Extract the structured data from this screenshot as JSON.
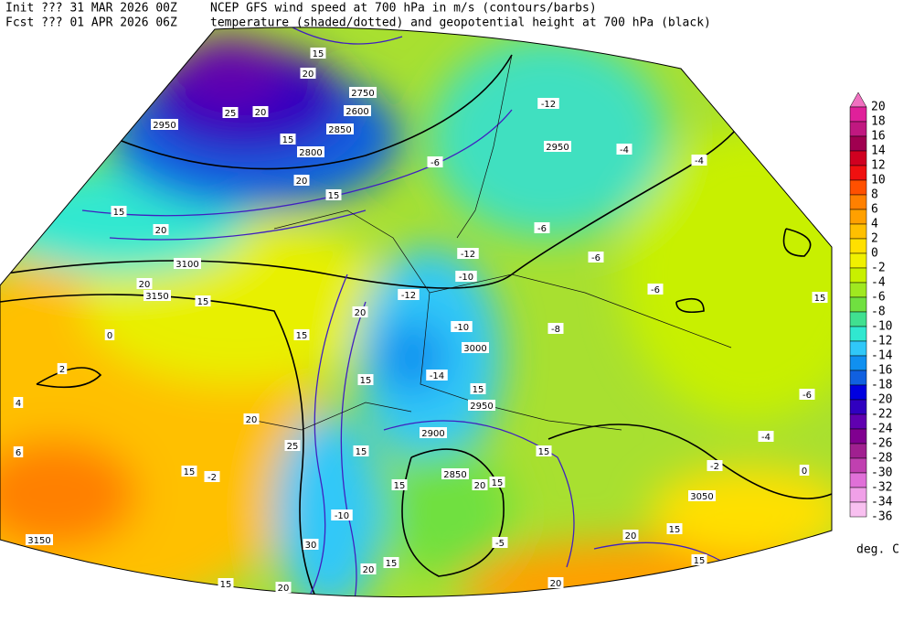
{
  "header": {
    "init": "Init  ??? 31 MAR 2026 00Z",
    "fcst": "Fcst ??? 01 APR 2026 06Z",
    "line1": "NCEP GFS wind speed at 700 hPa in m/s (contours/barbs)",
    "line2": "temperature (shaded/dotted) and geopotential height at 700 hPa (black)"
  },
  "colorbar": {
    "labels": [
      20,
      18,
      16,
      14,
      12,
      10,
      8,
      6,
      4,
      2,
      0,
      -2,
      -4,
      -6,
      -8,
      -10,
      -12,
      -14,
      -16,
      -18,
      -20,
      -22,
      -24,
      -26,
      -28,
      -30,
      -32,
      -34,
      -36
    ],
    "colors": [
      "#f070c0",
      "#e0209a",
      "#c01880",
      "#a00050",
      "#d00020",
      "#f01010",
      "#ff5000",
      "#ff8000",
      "#ffa000",
      "#ffc000",
      "#ffe000",
      "#f0f000",
      "#c8f000",
      "#a0e820",
      "#70e040",
      "#40e090",
      "#30e8d0",
      "#30c8f8",
      "#1090f0",
      "#1060e0",
      "#0000e0",
      "#3000c0",
      "#6000b0",
      "#800090",
      "#a02090",
      "#c040b0",
      "#e070d8",
      "#f0a0e8",
      "#f8c0f0"
    ],
    "unit": "deg. C"
  },
  "map_labels": [
    "2950",
    "2750",
    "2600",
    "2850",
    "2800",
    "2950",
    "3100",
    "3150",
    "3000",
    "2950",
    "2900",
    "2850",
    "3050",
    "3150",
    "15",
    "20",
    "25",
    "20",
    "15",
    "20",
    "15",
    "20",
    "15",
    "20",
    "15",
    "15",
    "20",
    "15",
    "15",
    "20",
    "25",
    "15",
    "15",
    "15",
    "15",
    "20",
    "15",
    "30",
    "20",
    "15",
    "15",
    "20",
    "20",
    "15",
    "15",
    "20",
    "15",
    "-12",
    "-10",
    "-12",
    "-10",
    "-14",
    "-6",
    "-4",
    "-4",
    "-6",
    "-6",
    "-6",
    "-8",
    "-6",
    "-4",
    "-2",
    "0",
    "0",
    "2",
    "4",
    "6",
    "-2",
    "-12",
    "-10",
    "-5"
  ]
}
